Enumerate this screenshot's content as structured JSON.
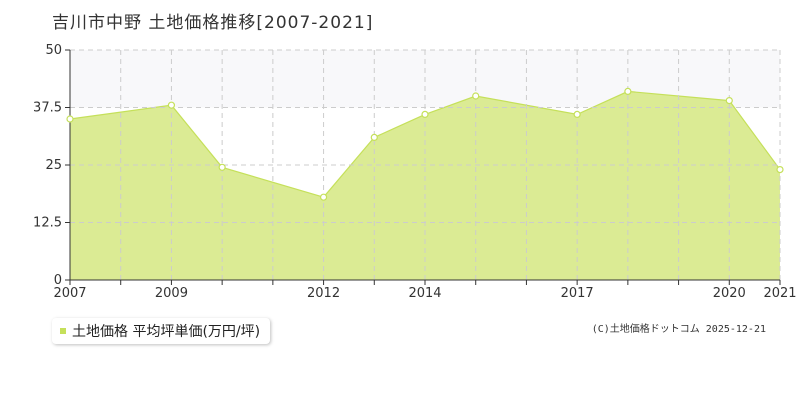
{
  "title": "吉川市中野 土地価格推移[2007-2021]",
  "legend": {
    "label": "土地価格 平均坪単価(万円/坪)"
  },
  "credit": "(C)土地価格ドットコム 2025-12-21",
  "colors": {
    "area_fill": "#dbeb94",
    "line": "#c5e05a",
    "band": "#f8f8fa",
    "grid": "#cccccc",
    "axis": "#333333"
  },
  "chart_data": {
    "type": "area",
    "x": [
      2007,
      2009,
      2010,
      2012,
      2013,
      2014,
      2015,
      2017,
      2018,
      2020,
      2021
    ],
    "values": [
      35.0,
      38.0,
      24.5,
      18.0,
      31.0,
      36.0,
      40.0,
      36.0,
      41.0,
      39.0,
      24.0
    ],
    "ylim": [
      0,
      50
    ],
    "yticks": [
      "0",
      "12.5",
      "25",
      "37.5",
      "50"
    ],
    "ytick_values": [
      0,
      12.5,
      25,
      37.5,
      50
    ],
    "xlim": [
      2007,
      2021
    ],
    "xtick_labels": [
      "2007",
      "2009",
      "2012",
      "2014",
      "2017",
      "2020",
      "2021"
    ],
    "xtick_values": [
      2007,
      2009,
      2012,
      2014,
      2017,
      2020,
      2021
    ],
    "grid": true,
    "legend_position": "bottom-left"
  }
}
